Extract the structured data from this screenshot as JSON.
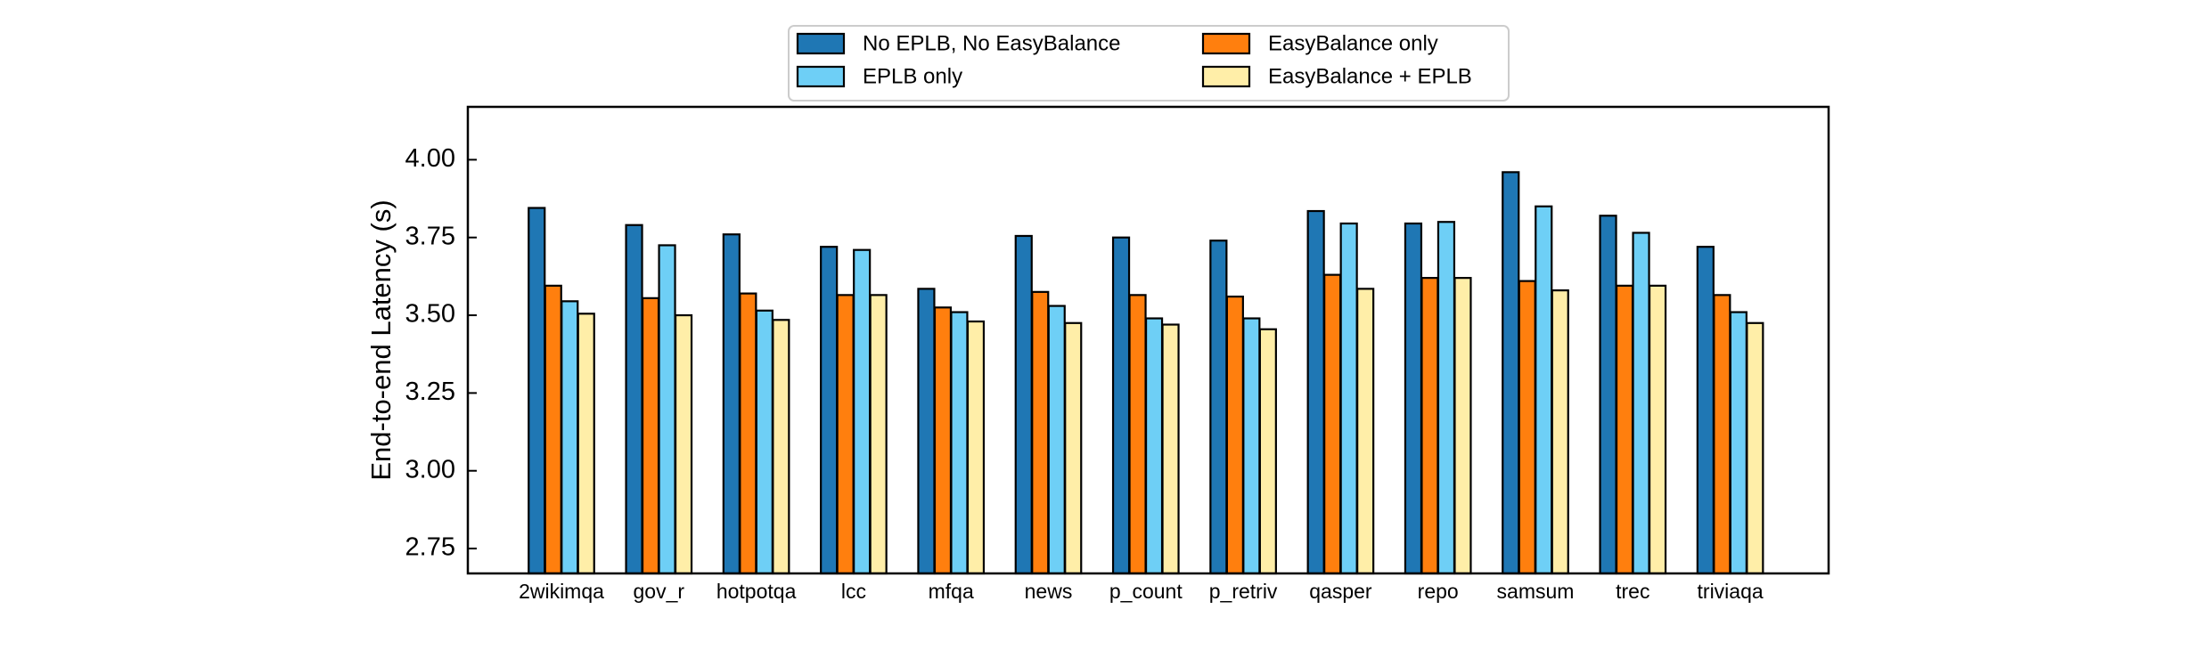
{
  "chart_data": {
    "type": "bar",
    "title": "",
    "xlabel": "",
    "ylabel": "End-to-end Latency (s)",
    "ylim": [
      2.67,
      4.17
    ],
    "yticks": [
      "2.75",
      "3.00",
      "3.25",
      "3.50",
      "3.75",
      "4.00"
    ],
    "grid": false,
    "legend_position": "top-center",
    "categories": [
      "2wikimqa",
      "gov_r",
      "hotpotqa",
      "lcc",
      "mfqa",
      "news",
      "p_count",
      "p_retriv",
      "qasper",
      "repo",
      "samsum",
      "trec",
      "triviaqa"
    ],
    "series": [
      {
        "name": "No EPLB, No EasyBalance",
        "color": "#1f77b4",
        "values": [
          3.845,
          3.79,
          3.76,
          3.72,
          3.585,
          3.755,
          3.75,
          3.74,
          3.835,
          3.795,
          3.96,
          3.82,
          3.72
        ]
      },
      {
        "name": "EasyBalance only",
        "color": "#ff7f0e",
        "values": [
          3.595,
          3.555,
          3.57,
          3.565,
          3.525,
          3.575,
          3.565,
          3.56,
          3.63,
          3.62,
          3.61,
          3.595,
          3.565
        ]
      },
      {
        "name": "EPLB only",
        "color": "#6ecff6",
        "values": [
          3.545,
          3.725,
          3.515,
          3.71,
          3.51,
          3.53,
          3.49,
          3.49,
          3.795,
          3.8,
          3.85,
          3.765,
          3.51
        ]
      },
      {
        "name": "EasyBalance + EPLB",
        "color": "#ffeea8",
        "values": [
          3.505,
          3.5,
          3.485,
          3.565,
          3.48,
          3.475,
          3.47,
          3.455,
          3.585,
          3.62,
          3.58,
          3.595,
          3.475
        ]
      }
    ],
    "legend_order": [
      0,
      2,
      1,
      3
    ]
  }
}
